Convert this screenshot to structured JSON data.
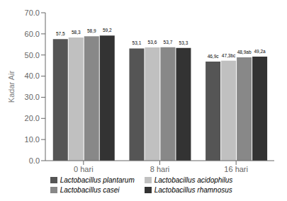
{
  "chart_data": {
    "type": "bar",
    "categories": [
      "0 hari",
      "8 hari",
      "16 hari"
    ],
    "series": [
      {
        "name": "Lactobacillus plantarum",
        "color": "#555555",
        "values": [
          57.5,
          53.1,
          46.9
        ],
        "value_labels": [
          "57,5",
          "53,1",
          "46,9c"
        ]
      },
      {
        "name": "Lactobacillus acidophilus",
        "color": "#c0c0c0",
        "values": [
          58.3,
          53.6,
          47.3
        ],
        "value_labels": [
          "58,3",
          "53,6",
          "47,3bc"
        ]
      },
      {
        "name": "Lactobacillus casei",
        "color": "#888888",
        "values": [
          58.9,
          53.7,
          48.9
        ],
        "value_labels": [
          "58,9",
          "53,7",
          "48,9ab"
        ]
      },
      {
        "name": "Lactobacillus rhamnosus",
        "color": "#333333",
        "values": [
          59.2,
          53.3,
          49.2
        ],
        "value_labels": [
          "59,2",
          "53,3",
          "49,2a"
        ]
      }
    ],
    "ylabel": "Kadar Air",
    "ylim": [
      0.0,
      70.0
    ],
    "yticks": [
      {
        "value": 0.0,
        "label": "0.0"
      },
      {
        "value": 10.0,
        "label": "10.0"
      },
      {
        "value": 20.0,
        "label": "20.0"
      },
      {
        "value": 30.0,
        "label": "30.0"
      },
      {
        "value": 40.0,
        "label": "40.0"
      },
      {
        "value": 50.0,
        "label": "50.0"
      },
      {
        "value": 60.0,
        "label": "60.0"
      },
      {
        "value": 70.0,
        "label": "70.0"
      }
    ],
    "data_labels": true,
    "grid": false,
    "legend": "bottom"
  }
}
